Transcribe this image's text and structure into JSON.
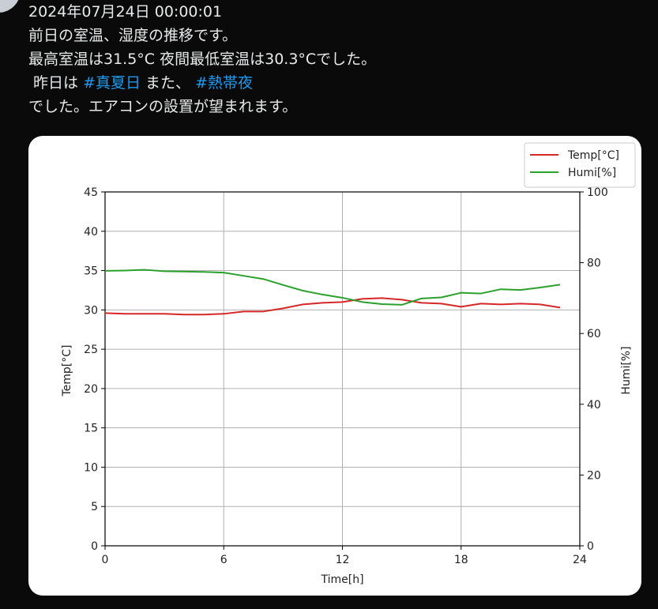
{
  "post": {
    "timestamp": "2024年07月24日 00:00:01",
    "line2": "前日の室温、湿度の推移です。",
    "line3": "最高室温は31.5°C 夜間最低室温は30.3°Cでした。",
    "line4_prefix": " 昨日は ",
    "hashtag1": "#真夏日",
    "line4_mid": " また、 ",
    "hashtag2": "#熱帯夜",
    "line5": "でした。エアコンの設置が望まれます。"
  },
  "colors": {
    "background": "#0a0a0a",
    "hashtag": "#1d9bf0",
    "temp_line": "#d62728",
    "humi_line": "#2ca02c"
  },
  "chart_data": {
    "type": "line",
    "title": "",
    "xlabel": "Time[h]",
    "ylabel": "Temp[°C]",
    "ylabel_right": "Humi[%]",
    "xlim": [
      0,
      24
    ],
    "ylim": [
      0,
      45
    ],
    "ylim_right": [
      0,
      100
    ],
    "xticks": [
      "0",
      "6",
      "12",
      "18",
      "24"
    ],
    "yticks": [
      "0",
      "5",
      "10",
      "15",
      "20",
      "25",
      "30",
      "35",
      "40",
      "45"
    ],
    "yticks_right": [
      "0",
      "20",
      "40",
      "60",
      "80",
      "100"
    ],
    "grid": true,
    "legend": {
      "position": "upper right",
      "entries": [
        "Temp[°C]",
        "Humi[%]"
      ]
    },
    "x": [
      0,
      1,
      2,
      3,
      4,
      5,
      6,
      7,
      8,
      9,
      10,
      11,
      12,
      13,
      14,
      15,
      16,
      17,
      18,
      19,
      20,
      21,
      22,
      23
    ],
    "series": [
      {
        "name": "Temp[°C]",
        "axis": "left",
        "color": "#d62728",
        "values": [
          29.6,
          29.5,
          29.5,
          29.5,
          29.4,
          29.4,
          29.5,
          29.8,
          29.8,
          30.2,
          30.7,
          30.9,
          31.0,
          31.4,
          31.5,
          31.3,
          30.9,
          30.8,
          30.4,
          30.8,
          30.7,
          30.8,
          30.7,
          30.3
        ]
      },
      {
        "name": "Humi[%]",
        "axis": "right",
        "color": "#2ca02c",
        "values": [
          77.7,
          77.8,
          78.0,
          77.6,
          77.5,
          77.4,
          77.2,
          76.3,
          75.4,
          73.7,
          72.1,
          71.0,
          70.1,
          68.9,
          68.3,
          68.1,
          69.9,
          70.2,
          71.5,
          71.3,
          72.5,
          72.3,
          73.0,
          73.8
        ]
      }
    ]
  }
}
